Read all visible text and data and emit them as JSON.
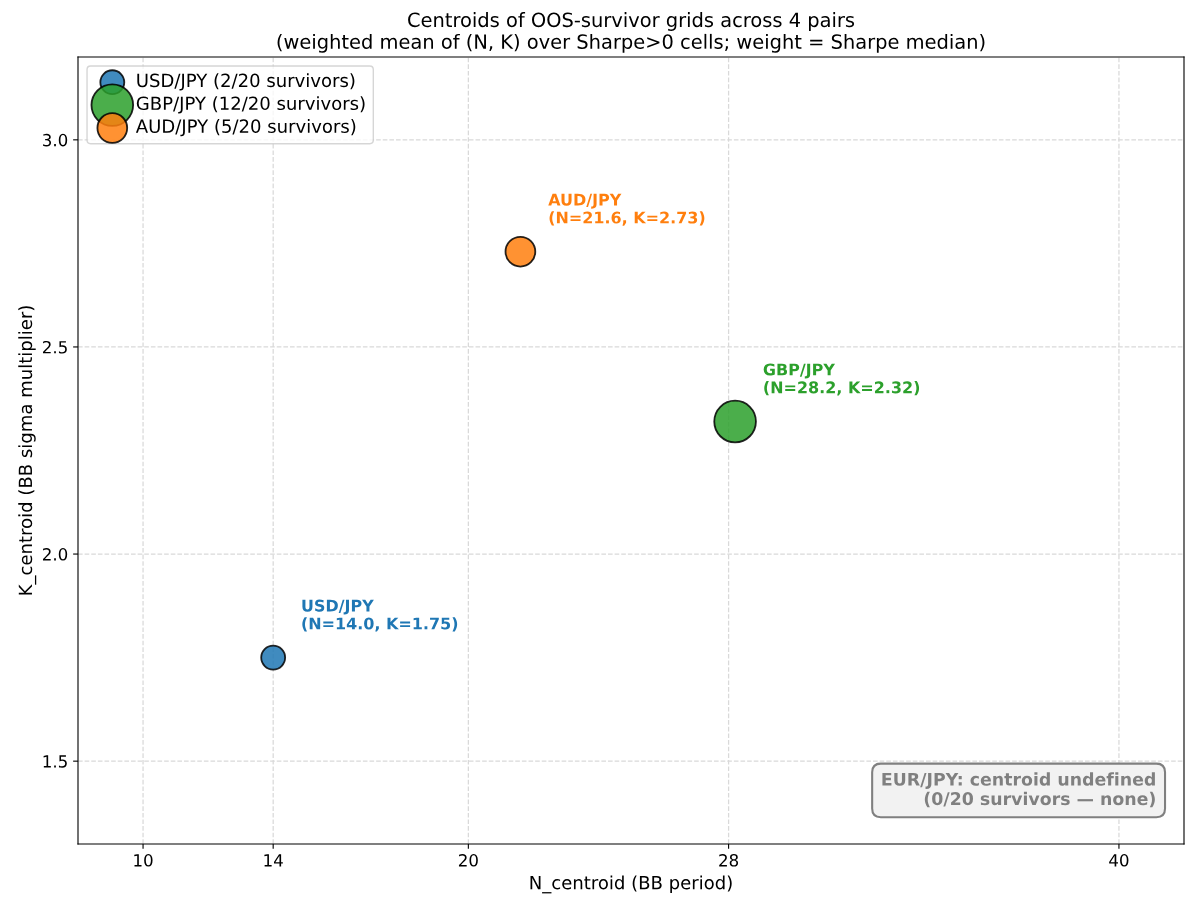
{
  "chart_data": {
    "type": "bubble",
    "title": "Centroids of OOS-survivor grids across 4 pairs\n(weighted mean of (N, K) over Sharpe>0 cells; weight = Sharpe median)",
    "xlabel": "N_centroid (BB period)",
    "ylabel": "K_centroid (BB sigma multiplier)",
    "series": [
      {
        "name": "USD/JPY (2/20 survivors)",
        "color": "#1f77b4",
        "x": [
          14.0
        ],
        "values": [
          1.75
        ],
        "sizes": [
          0.33
        ]
      },
      {
        "name": "GBP/JPY (12/20 survivors)",
        "color": "#2ca02c",
        "x": [
          28.2
        ],
        "values": [
          2.32
        ],
        "sizes": [
          1
        ]
      },
      {
        "name": "AUD/JPY (5/20 survivors)",
        "color": "#ff7f0e",
        "x": [
          21.6
        ],
        "values": [
          2.73
        ],
        "sizes": [
          0.51
        ]
      }
    ],
    "annotations": [
      {
        "text": "USD/JPY\n(N=14.0, K=1.75)",
        "x": 14.0,
        "y": 1.75
      },
      {
        "text": "GBP/JPY\n(N=28.2, K=2.32)",
        "x": 28.2,
        "y": 2.32
      },
      {
        "text": "AUD/JPY\n(N=21.6, K=2.73)",
        "x": 21.6,
        "y": 2.73
      },
      "EUR/JPY: centroid undefined\n(0/20 survivors — none)"
    ],
    "xlim": [
      8,
      42
    ],
    "xticks": [
      10,
      14,
      20,
      28,
      40
    ],
    "ylim": [
      1.3,
      3.2
    ],
    "yticks": [
      {
        "value": 1.5,
        "label": "1.5"
      },
      {
        "value": 2.0,
        "label": "2.0"
      },
      {
        "value": 2.5,
        "label": "2.5"
      },
      {
        "value": 3.0,
        "label": "3.0"
      }
    ],
    "grid": true,
    "legend": "top left"
  }
}
